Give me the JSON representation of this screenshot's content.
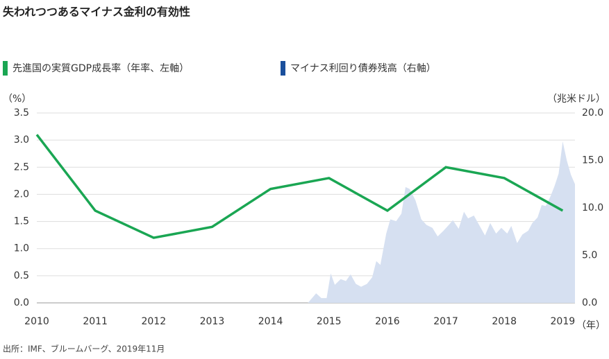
{
  "chart_data": {
    "type": "line",
    "title": "失われつつあるマイナス金利の有効性",
    "y_label": "（%）",
    "y2_label": "（兆米ドル）",
    "x_label": "（年）",
    "source": "出所：IMF、ブルームバーグ、2019年11月",
    "xlim": [
      2010,
      2019.21
    ],
    "xticks": [
      2010,
      2011,
      2012,
      2013,
      2014,
      2015,
      2016,
      2017,
      2018,
      2019
    ],
    "ylim": [
      0,
      3.5
    ],
    "yticks": [
      {
        "value": 0,
        "label": "0.0"
      },
      0.5,
      {
        "value": 1,
        "label": "1.0"
      },
      1.5,
      {
        "value": 2,
        "label": "2.0"
      },
      2.5,
      {
        "value": 3,
        "label": "3.0"
      },
      3.5
    ],
    "y2lim": [
      0,
      20
    ],
    "y2ticks": [
      {
        "value": 0,
        "label": "0.0"
      },
      {
        "value": 5,
        "label": "5.0"
      },
      {
        "value": 10,
        "label": "10.0"
      },
      {
        "value": 15,
        "label": "15.0"
      },
      {
        "value": 20,
        "label": "20.0"
      }
    ],
    "grid": true,
    "series": [
      {
        "name": "先進国の実質GDP成長率（年率、左軸）",
        "color": "#1aa653",
        "type": "line",
        "x": [
          2010,
          2011,
          2012,
          2013,
          2014,
          2015,
          2016,
          2017,
          2018,
          2019
        ],
        "values": [
          3.1,
          1.7,
          1.2,
          1.4,
          2.1,
          2.3,
          1.7,
          2.5,
          2.3,
          1.7
        ]
      },
      {
        "name": "マイナス利回り債券残高（右軸）",
        "color": "#d6e0f1",
        "legend_color": "#1a4f9c",
        "type": "area",
        "axis": "y2",
        "x": [
          2014.64,
          2014.78,
          2014.87,
          2014.96,
          2015.03,
          2015.1,
          2015.2,
          2015.29,
          2015.37,
          2015.46,
          2015.55,
          2015.65,
          2015.74,
          2015.81,
          2015.88,
          2015.98,
          2016.05,
          2016.15,
          2016.24,
          2016.31,
          2016.38,
          2016.48,
          2016.58,
          2016.67,
          2016.77,
          2016.86,
          2016.96,
          2017.05,
          2017.12,
          2017.22,
          2017.31,
          2017.38,
          2017.48,
          2017.57,
          2017.67,
          2017.76,
          2017.86,
          2017.95,
          2018.05,
          2018.12,
          2018.22,
          2018.31,
          2018.41,
          2018.48,
          2018.57,
          2018.64,
          2018.71,
          2018.79,
          2018.86,
          2018.93,
          2019.0,
          2019.07,
          2019.14,
          2019.21
        ],
        "values": [
          0,
          1.0,
          0.5,
          0.5,
          3.1,
          1.9,
          2.5,
          2.3,
          3.0,
          2.0,
          1.7,
          2.0,
          2.7,
          4.4,
          4.0,
          7.3,
          8.8,
          8.6,
          9.4,
          12.2,
          12.0,
          10.8,
          8.8,
          8.2,
          7.9,
          7.0,
          7.6,
          8.2,
          8.7,
          7.8,
          9.6,
          8.9,
          9.2,
          8.2,
          7.1,
          8.4,
          7.3,
          7.9,
          7.3,
          8.1,
          6.3,
          7.2,
          7.6,
          8.4,
          9.0,
          10.3,
          10.2,
          11.2,
          12.3,
          13.6,
          17.0,
          15.0,
          13.5,
          12.5
        ]
      }
    ]
  }
}
